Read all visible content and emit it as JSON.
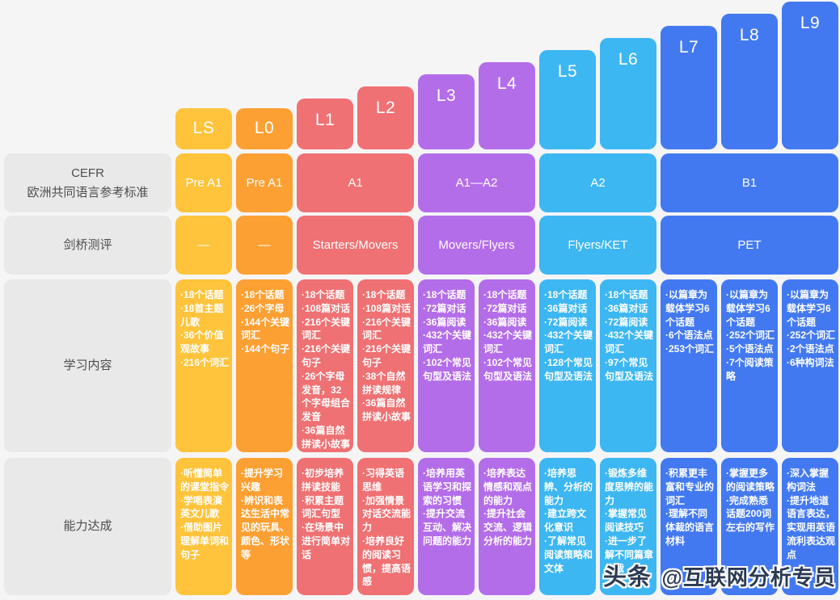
{
  "palette": {
    "background": "#f5f5f6",
    "label_box": "#e9e9e9",
    "label_text": "#4d4d4d",
    "level_ls": "#ffc43c",
    "level_l0": "#fda033",
    "level_l1_l2": "#ef7173",
    "level_l3_l4": "#b46de9",
    "level_l5_l6": "#3db7f2",
    "level_l7_l9": "#4379f0",
    "watermark_text": "#2b3a52"
  },
  "row_labels": {
    "cefr_line1": "CEFR",
    "cefr_line2": "欧洲共同语言参考标准",
    "cambridge": "剑桥测评",
    "content": "学习内容",
    "ability": "能力达成"
  },
  "cefr_row": [
    "Pre A1",
    "Pre A1",
    "A1",
    "A1—A2",
    "A2",
    "B1"
  ],
  "cambridge_row": [
    "—",
    "—",
    "Starters/Movers",
    "Movers/Flyers",
    "Flyers/KET",
    "PET"
  ],
  "levels": [
    {
      "label": "LS",
      "content": [
        "·18个话题",
        "·18首主题儿歌",
        "·36个价值观故事",
        "·216个词汇"
      ],
      "ability": [
        "·听懂简单的课堂指令",
        "·学唱表演英文儿歌",
        "·借助图片理解单词和句子"
      ]
    },
    {
      "label": "L0",
      "content": [
        "·18个话题",
        "·26个字母",
        "·144个关键词汇",
        "·144个句子"
      ],
      "ability": [
        "·提升学习兴趣",
        "·辨识和表达生活中常见的玩具、颜色、形状等"
      ]
    },
    {
      "label": "L1",
      "content": [
        "·18个话题",
        "·108篇对话",
        "·216个关键词汇",
        "·216个关键句子",
        "·26个字母发音，32个字母组合发音",
        "·36篇自然拼读小故事"
      ],
      "ability": [
        "·初步培养拼读技能",
        "·积累主题词汇句型",
        "·在场景中进行简单对话"
      ]
    },
    {
      "label": "L2",
      "content": [
        "·18个话题",
        "·108篇对话",
        "·216个关键词汇",
        "·216个关键句子",
        "·38个自然拼读规律",
        "·36篇自然拼读小故事"
      ],
      "ability": [
        "·习得英语思维",
        "·加强情景对话交流能力",
        "·培养良好的阅读习惯，提高语感"
      ]
    },
    {
      "label": "L3",
      "content": [
        "·18个话题",
        "·72篇对话",
        "·36篇阅读",
        "·432个关键词汇",
        "·102个常见句型及语法"
      ],
      "ability": [
        "·培养用英语学习和探索的习惯",
        "·提升交流互动、解决问题的能力"
      ]
    },
    {
      "label": "L4",
      "content": [
        "·18个话题",
        "·72篇对话",
        "·36篇阅读",
        "·432个关键词汇",
        "·102个常见句型及语法"
      ],
      "ability": [
        "·培养表达情感和观点的能力",
        "·提升社会交流、逻辑分析的能力"
      ]
    },
    {
      "label": "L5",
      "content": [
        "·18个话题",
        "·36篇对话",
        "·72篇阅读",
        "·432个关键词汇",
        "·128个常见句型及语法"
      ],
      "ability": [
        "·培养思辨、分析的能力",
        "·建立跨文化意识",
        "·了解常见阅读策略和文体"
      ]
    },
    {
      "label": "L6",
      "content": [
        "·18个话题",
        "·36篇对话",
        "·72篇阅读",
        "·432个关键词汇",
        "·97个常见句型及语法"
      ],
      "ability": [
        "·锻炼多维度思辨的能力",
        "·掌握常见阅读技巧",
        "·进一步了解不同篇章体裁"
      ]
    },
    {
      "label": "L7",
      "content": [
        "·以篇章为载体学习6个话题",
        "·6个语法点",
        "·253个词汇"
      ],
      "ability": [
        "·积累更丰富和专业的词汇",
        "·理解不同体裁的语言材料"
      ]
    },
    {
      "label": "L8",
      "content": [
        "·以篇章为载体学习6个话题",
        "·252个词汇",
        "·5个语法点",
        "·7个阅读策略"
      ],
      "ability": [
        "·掌握更多的阅读策略",
        "·完成熟悉话题200词左右的写作"
      ]
    },
    {
      "label": "L9",
      "content": [
        "·以篇章为载体学习6个话题",
        "·252个词汇",
        "·2个语法点",
        "·6种构词法"
      ],
      "ability": [
        "·深入掌握构词法",
        "·提升地道语言表达，实现用英语流利表达观点"
      ]
    }
  ],
  "watermark": {
    "brand": "头条",
    "handle": "@互联网分析专员"
  }
}
